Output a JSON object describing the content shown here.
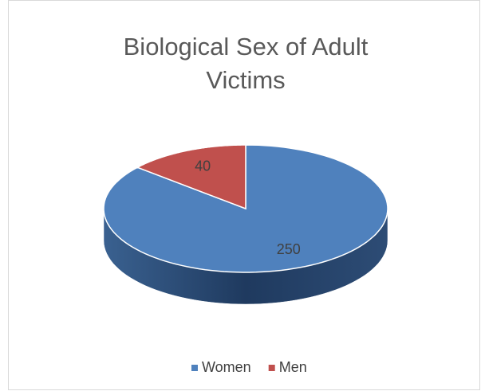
{
  "chart_data": {
    "type": "pie",
    "title": "Biological Sex of Adult Victims",
    "categories": [
      "Women",
      "Men"
    ],
    "values": [
      250,
      40
    ],
    "colors": [
      "#4f81bd",
      "#c0504d"
    ],
    "legend": "bottom"
  }
}
